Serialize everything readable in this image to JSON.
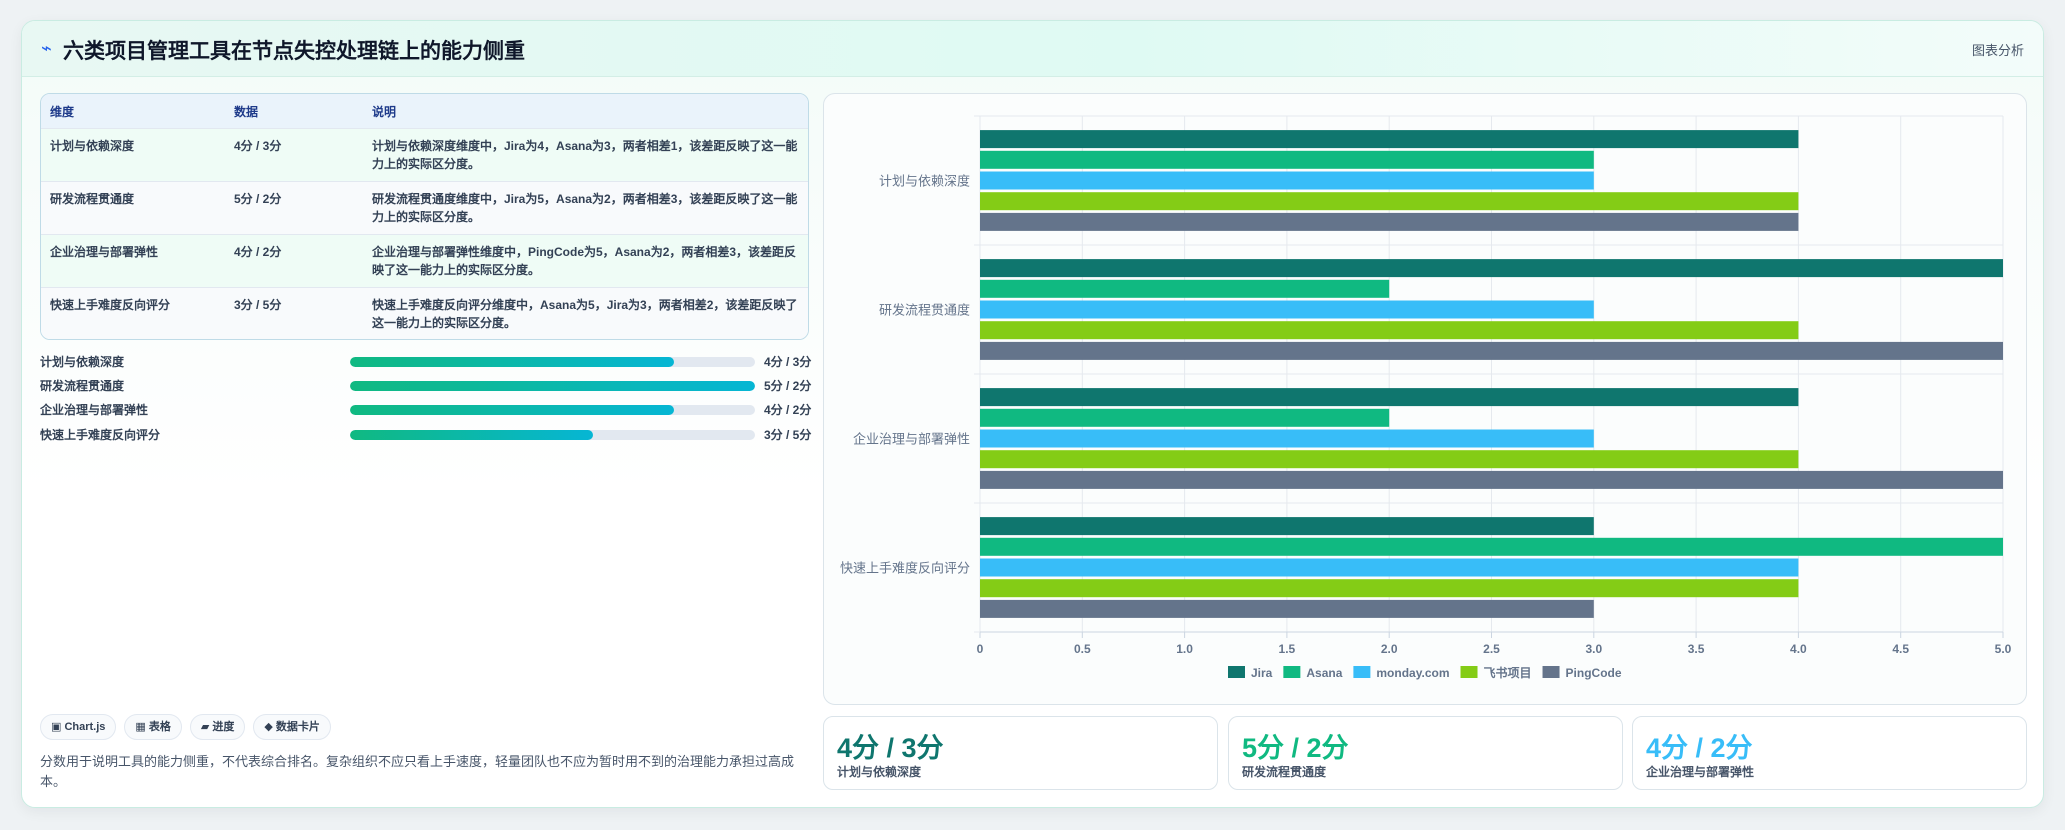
{
  "header": {
    "icon": "lightning-icon",
    "title": "六类项目管理工具在节点失控处理链上的能力侧重",
    "tag": "图表分析"
  },
  "table": {
    "columns": [
      "维度",
      "数据",
      "说明"
    ],
    "rows": [
      {
        "dimension": "计划与依赖深度",
        "data": "4分 / 3分",
        "desc": "计划与依赖深度维度中，Jira为4，Asana为3，两者相差1，该差距反映了这一能力上的实际区分度。"
      },
      {
        "dimension": "研发流程贯通度",
        "data": "5分 / 2分",
        "desc": "研发流程贯通度维度中，Jira为5，Asana为2，两者相差3，该差距反映了这一能力上的实际区分度。"
      },
      {
        "dimension": "企业治理与部署弹性",
        "data": "4分 / 2分",
        "desc": "企业治理与部署弹性维度中，PingCode为5，Asana为2，两者相差3，该差距反映了这一能力上的实际区分度。"
      },
      {
        "dimension": "快速上手难度反向评分",
        "data": "3分 / 5分",
        "desc": "快速上手难度反向评分维度中，Asana为5，Jira为3，两者相差2，该差距反映了这一能力上的实际区分度。"
      }
    ]
  },
  "progress": [
    {
      "label": "计划与依赖深度",
      "value": "4分 / 3分",
      "fraction": 0.8
    },
    {
      "label": "研发流程贯通度",
      "value": "5分 / 2分",
      "fraction": 1.0
    },
    {
      "label": "企业治理与部署弹性",
      "value": "4分 / 2分",
      "fraction": 0.8
    },
    {
      "label": "快速上手难度反向评分",
      "value": "3分 / 5分",
      "fraction": 0.6
    }
  ],
  "chips": [
    "▣ Chart.js",
    "▦ 表格",
    "▰ 进度",
    "◆ 数据卡片"
  ],
  "note": "分数用于说明工具的能力侧重，不代表综合排名。复杂组织不应只看上手速度，轻量团队也不应为暂时用不到的治理能力承担过高成本。",
  "kpis": [
    {
      "value": "4分 / 3分",
      "label": "计划与依赖深度",
      "color": "#0f766e"
    },
    {
      "value": "5分 / 2分",
      "label": "研发流程贯通度",
      "color": "#10b981"
    },
    {
      "value": "4分 / 2分",
      "label": "企业治理与部署弹性",
      "color": "#38bdf8"
    }
  ],
  "chart_data": {
    "type": "bar",
    "orientation": "horizontal",
    "categories": [
      "计划与依赖深度",
      "研发流程贯通度",
      "企业治理与部署弹性",
      "快速上手难度反向评分"
    ],
    "series": [
      {
        "name": "Jira",
        "color": "#0f766e",
        "values": [
          4,
          5,
          4,
          3
        ]
      },
      {
        "name": "Asana",
        "color": "#10b981",
        "values": [
          3,
          2,
          2,
          5
        ]
      },
      {
        "name": "monday.com",
        "color": "#38bdf8",
        "values": [
          3,
          3,
          3,
          4
        ]
      },
      {
        "name": "飞书项目",
        "color": "#84cc16",
        "values": [
          4,
          4,
          4,
          4
        ]
      },
      {
        "name": "PingCode",
        "color": "#64748b",
        "values": [
          4,
          5,
          5,
          3
        ]
      }
    ],
    "xlim": [
      0,
      5
    ],
    "x_ticks": [
      "0",
      "0.5",
      "1.0",
      "1.5",
      "2.0",
      "2.5",
      "3.0",
      "3.5",
      "4.0",
      "4.5",
      "5.0"
    ],
    "grid": true,
    "legend": "bottom"
  }
}
